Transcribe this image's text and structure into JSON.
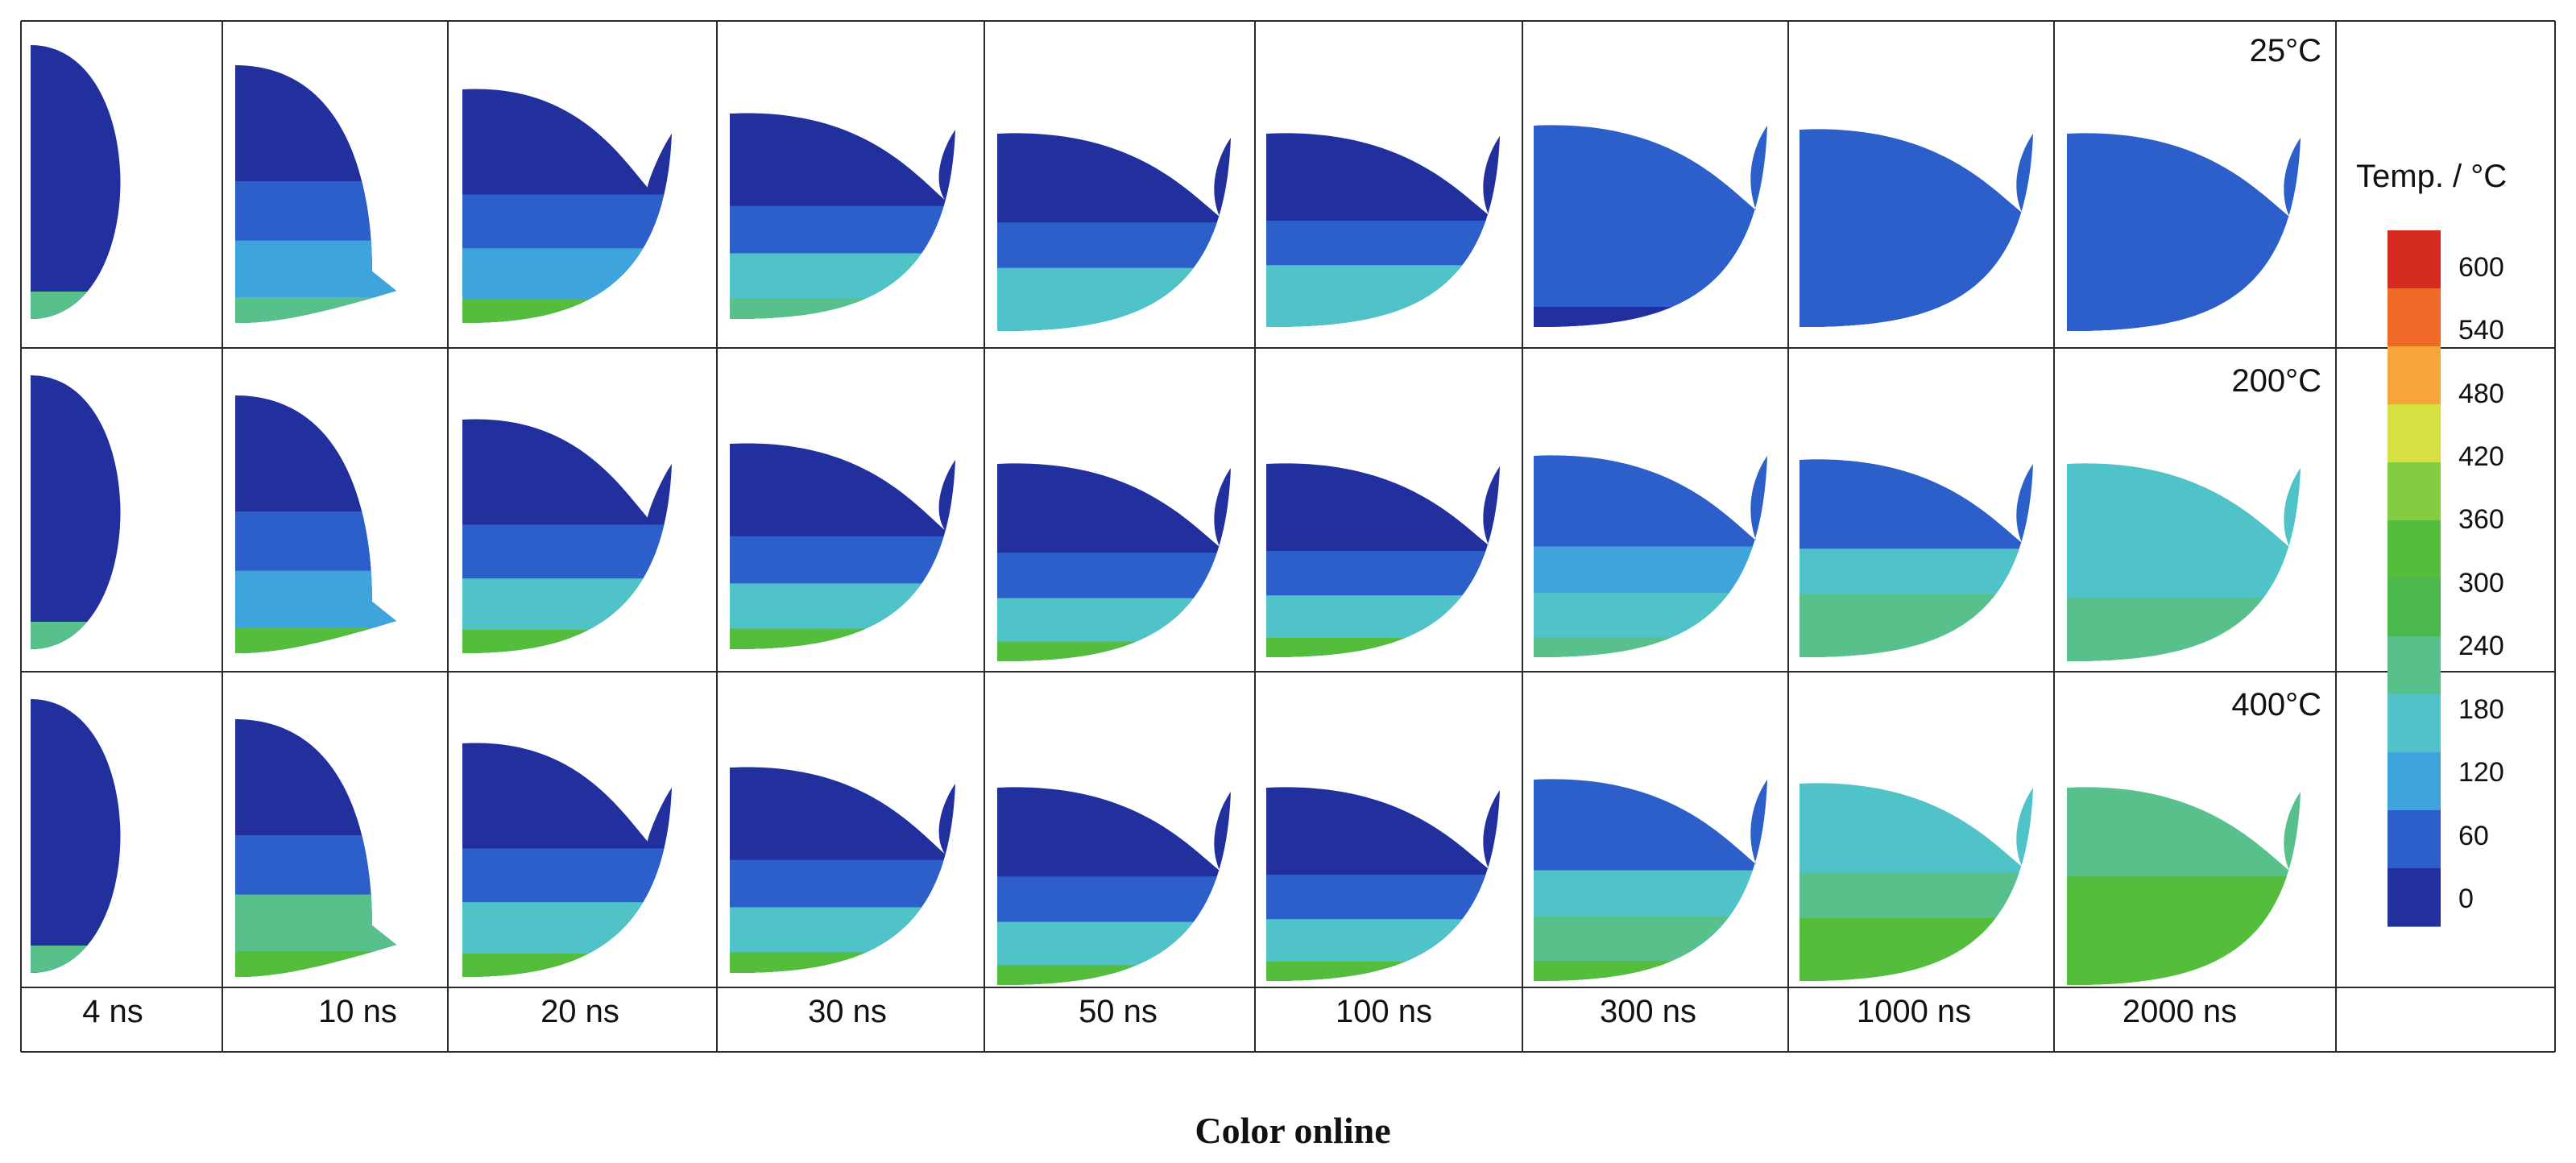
{
  "temperatures": [
    "25°C",
    "200°C",
    "400°C"
  ],
  "times": [
    "4 ns",
    "10 ns",
    "20 ns",
    "30 ns",
    "50 ns",
    "100 ns",
    "300 ns",
    "1000 ns",
    "2000 ns"
  ],
  "colorbar": {
    "title": "Temp. / °C",
    "ticks": [
      "600",
      "540",
      "480",
      "420",
      "360",
      "300",
      "240",
      "180",
      "120",
      "60",
      "0"
    ],
    "colors": [
      "#d42a20",
      "#ee6a26",
      "#f5a53a",
      "#d6e040",
      "#84cd40",
      "#54bd3c",
      "#4ab84a",
      "#58c08a",
      "#4fc3c8",
      "#3fa3dc",
      "#2d5fcb",
      "#22309e"
    ]
  },
  "caption": "Color online",
  "panel_colors": [
    "#22309e",
    "#2d5fcb",
    "#3fa3dc",
    "#4fc3c8",
    "#58c08a",
    "#54bd3c",
    "#84cd40"
  ]
}
